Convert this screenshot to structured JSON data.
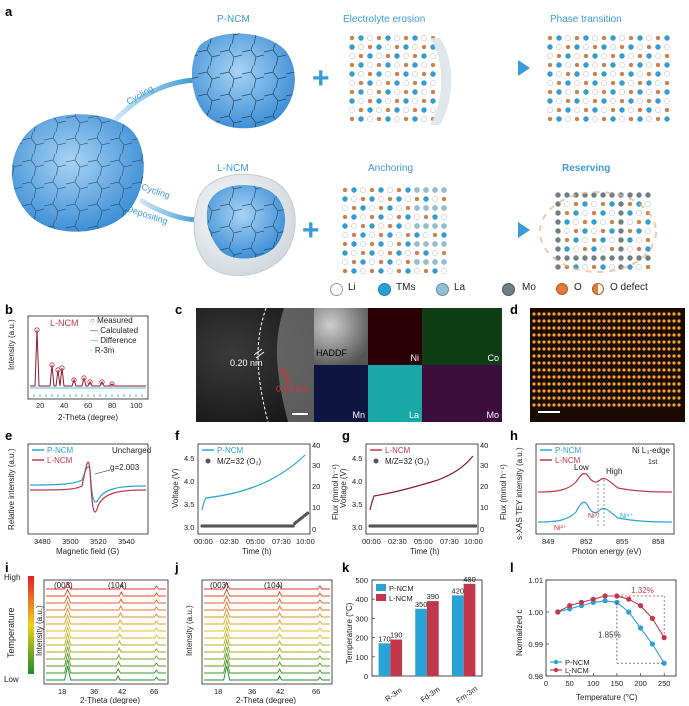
{
  "panel_letters": [
    "a",
    "b",
    "c",
    "d",
    "e",
    "f",
    "g",
    "h",
    "i",
    "j",
    "k",
    "l"
  ],
  "panel_a": {
    "pncm_title": "P-NCM",
    "lncm_title": "L-NCM",
    "erosion_title": "Electrolyte erosion",
    "phase_title": "Phase transition",
    "anchoring_title": "Anchoring",
    "reserving_title": "Reserving",
    "cycling_top": "Cycling",
    "cycling_bottom": "Cycling",
    "depositing": "Depositing",
    "plus": "+",
    "legend": [
      "Li",
      "TMs",
      "La",
      "Mo",
      "O",
      "O defect"
    ],
    "colors": {
      "accent": "#3a9bd5",
      "particle": "#7ab4e8",
      "li": "#ffffff",
      "tm": "#2aa0d8",
      "la": "#8fc0d6",
      "mo": "#6f7f86",
      "o": "#e07a3a"
    }
  },
  "panel_b": {
    "title": "L-NCM",
    "legend": [
      "Measured",
      "Calculated",
      "Difference",
      "R-3m"
    ],
    "xlabel": "2-Theta (degree)",
    "ylabel": "Intensity (a.u.)",
    "xticks": [
      "20",
      "40",
      "60",
      "80",
      "100"
    ]
  },
  "panel_c": {
    "labels": [
      "0.20 nm",
      "0.23 nm",
      "HADDF",
      "Ni",
      "Co",
      "Mn",
      "La",
      "Mo"
    ]
  },
  "panel_e": {
    "legend": [
      "P-NCM",
      "L-NCM"
    ],
    "note": "Uncharged",
    "annotation": "g=2.003",
    "xlabel": "Magnetic field (G)",
    "ylabel": "Relative intensity (a.u.)",
    "xticks": [
      "3480",
      "3500",
      "3520",
      "3540"
    ]
  },
  "panel_f": {
    "legend": [
      "P-NCM",
      "M/Z=32 (O₂)"
    ],
    "xlabel": "Time (h)",
    "ylabel": "Voltage (V)",
    "ylabel2": "Flux (mmol h⁻¹)",
    "xticks": [
      "00:00",
      "02:30",
      "05:00",
      "07:30",
      "10:00"
    ],
    "yticks": [
      "3.0",
      "3.5",
      "4.0",
      "4.5"
    ],
    "y2ticks": [
      "0",
      "10",
      "20",
      "30",
      "40"
    ]
  },
  "panel_g": {
    "legend": [
      "L-NCM",
      "M/Z=32 (O₂)"
    ],
    "xlabel": "Time (h)",
    "ylabel": "Voltage (V)",
    "ylabel2": "Flux (mmol h⁻¹)",
    "xticks": [
      "00:00",
      "02:30",
      "05:00",
      "07:30",
      "10:00"
    ],
    "yticks": [
      "3.0",
      "3.5",
      "4.0",
      "4.5"
    ],
    "y2ticks": [
      "0",
      "10",
      "20",
      "30",
      "40"
    ]
  },
  "panel_h": {
    "legend": [
      "P-NCM",
      "L-NCM"
    ],
    "edge": "Ni L₃-edge",
    "first": "1st",
    "low": "Low",
    "high": "High",
    "ni2": "Ni²⁺",
    "ni3": "Ni³⁺",
    "ni4": "Ni⁴⁺",
    "xlabel": "Photon energy (eV)",
    "ylabel": "s-XAS TEY intensity (a.u.)",
    "xticks": [
      "849",
      "852",
      "855",
      "858"
    ]
  },
  "panel_i": {
    "peaks": [
      "(003)",
      "(104)"
    ],
    "high": "High",
    "low": "Low",
    "temp": "Temperature",
    "ylabel": "Intensity (a.u.)",
    "xlabel": "2-Theta (degree)",
    "xticks": [
      "18",
      "36",
      "42",
      "66"
    ]
  },
  "panel_j": {
    "peaks": [
      "(003)",
      "(104)"
    ],
    "ylabel": "Intensity (a.u.)",
    "xlabel": "2-Theta (degree)",
    "xticks": [
      "18",
      "36",
      "42",
      "66"
    ]
  },
  "chart_data": [
    {
      "type": "bar",
      "title": "",
      "categories": [
        "R-3m",
        "Fd-3m",
        "Fm-3m"
      ],
      "series": [
        {
          "name": "P-NCM",
          "values": [
            170,
            350,
            420
          ],
          "color": "#29a3d6"
        },
        {
          "name": "L-NCM",
          "values": [
            190,
            390,
            480
          ],
          "color": "#c2384a"
        }
      ],
      "ylabel": "Temperature (°C)",
      "ylim": [
        0,
        500
      ],
      "yticks": [
        "0",
        "100",
        "200",
        "300",
        "400",
        "500"
      ]
    },
    {
      "type": "line",
      "title": "",
      "x": [
        25,
        50,
        75,
        100,
        125,
        150,
        175,
        200,
        225,
        250
      ],
      "series": [
        {
          "name": "P-NCM",
          "values": [
            1.0,
            1.001,
            1.002,
            1.003,
            1.0035,
            1.003,
            1.0,
            0.995,
            0.99,
            0.984
          ],
          "color": "#29a3d6"
        },
        {
          "name": "L-NCM",
          "values": [
            1.0,
            1.002,
            1.003,
            1.004,
            1.005,
            1.005,
            1.004,
            1.002,
            0.998,
            0.992
          ],
          "color": "#c2384a"
        }
      ],
      "annotations": [
        "1.32%",
        "1.85%"
      ],
      "xlabel": "Temperature (°C)",
      "ylabel": "Normalized c",
      "xlim": [
        0,
        275
      ],
      "ylim": [
        0.98,
        1.01
      ],
      "xticks": [
        "0",
        "50",
        "100",
        "150",
        "200",
        "250"
      ],
      "yticks": [
        "0.98",
        "0.99",
        "1.00",
        "1.01"
      ]
    }
  ]
}
